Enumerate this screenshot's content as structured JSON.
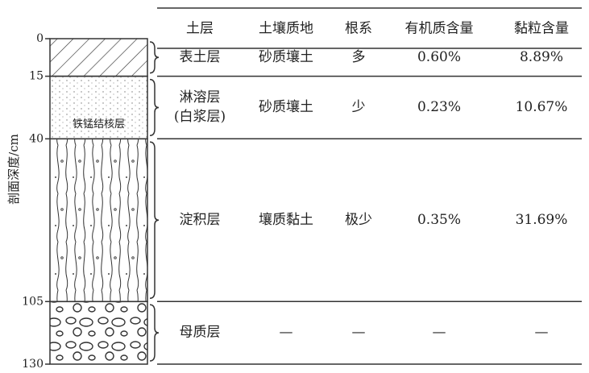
{
  "axis_label": "剖面深度/cm",
  "depths": [
    0,
    15,
    40,
    105,
    130
  ],
  "profile_note": "铁锰结核层",
  "table": {
    "header": [
      "土层",
      "土壤质地",
      "根系",
      "有机质含量",
      "黏粒含量"
    ],
    "rows": [
      [
        [
          "表土层"
        ],
        "砂质壤土",
        "多",
        "0.60%",
        "8.89%"
      ],
      [
        [
          "淋溶层",
          "(白浆层)"
        ],
        "砂质壤土",
        "少",
        "0.23%",
        "10.67%"
      ],
      [
        [
          "淀积层"
        ],
        "壤质黏土",
        "极少",
        "0.35%",
        "31.69%"
      ],
      [
        [
          "母质层"
        ],
        "—",
        "—",
        "—",
        "—"
      ]
    ]
  }
}
